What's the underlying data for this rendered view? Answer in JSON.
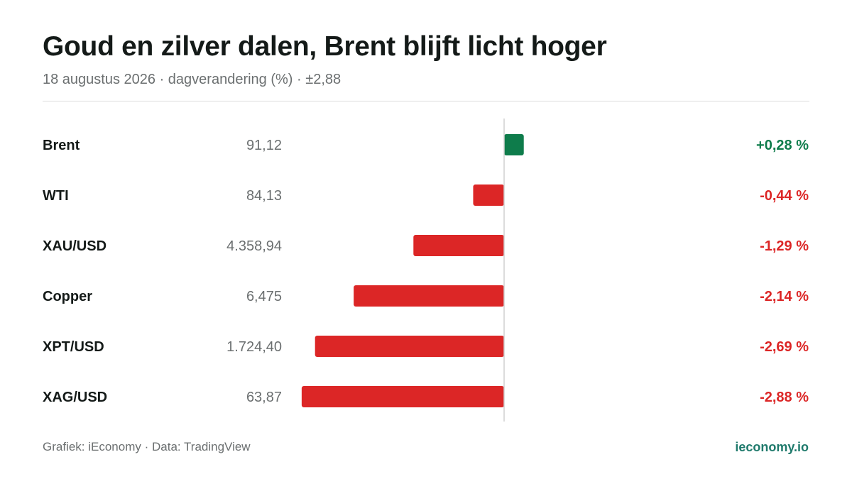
{
  "header": {
    "title": "Goud en zilver dalen, Brent blijft licht hoger",
    "subtitle": "18 augustus 2026 · dagverandering (%) · ±2,88"
  },
  "footer": {
    "credit": "Grafiek: iEconomy · Data: TradingView",
    "site": "ieconomy.io"
  },
  "colors": {
    "positive": "#0e7c4b",
    "negative": "#dc2626",
    "label": "#141a18",
    "price": "#6b6f70",
    "axis": "#d0d0d0"
  },
  "chart_data": {
    "type": "bar",
    "orientation": "horizontal",
    "xlim": [
      -2.88,
      2.88
    ],
    "categories": [
      "Brent",
      "WTI",
      "XAU/USD",
      "Copper",
      "XPT/USD",
      "XAG/USD"
    ],
    "prices": [
      "91,12",
      "84,13",
      "4.358,94",
      "6,475",
      "1.724,40",
      "63,87"
    ],
    "values": [
      0.28,
      -0.44,
      -1.29,
      -2.14,
      -2.69,
      -2.88
    ],
    "value_labels": [
      "+0,28 %",
      "-0,44 %",
      "-1,29 %",
      "-2,14 %",
      "-2,69 %",
      "-2,88 %"
    ]
  }
}
